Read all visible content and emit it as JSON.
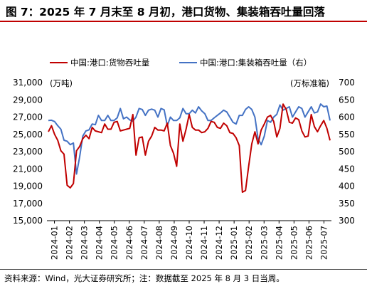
{
  "title": "图 7：2025 年 7 月末至 8 月初，港口货物、集装箱吞吐量回落",
  "source": "资料来源：Wind，光大证券研究所；注：数据截至 2025 年 8 月 3 日当周。",
  "colors": {
    "title_rule": "#c00000",
    "series_left": "#c00000",
    "series_right": "#4472c4"
  },
  "chart_data": {
    "type": "line",
    "left_axis": {
      "unit_label": "(万吨)",
      "ticks": [
        15000,
        17000,
        19000,
        21000,
        23000,
        25000,
        27000,
        29000,
        31000
      ],
      "tick_labels": [
        "15,000",
        "17,000",
        "19,000",
        "21,000",
        "23,000",
        "25,000",
        "27,000",
        "29,000",
        "31,000"
      ],
      "ylim": [
        15000,
        31000
      ]
    },
    "right_axis": {
      "unit_label": "(万标准箱)",
      "ticks": [
        300,
        350,
        400,
        450,
        500,
        550,
        600,
        650,
        700
      ],
      "tick_labels": [
        "300",
        "350",
        "400",
        "450",
        "500",
        "550",
        "600",
        "650",
        "700"
      ],
      "ylim": [
        300,
        700
      ]
    },
    "x_labels": [
      "2024-01",
      "2024-02",
      "2024-03",
      "2024-04",
      "2024-05",
      "2024-06",
      "2024-07",
      "2024-08",
      "2024-09",
      "2024-10",
      "2024-11",
      "2024-12",
      "2025-01",
      "2025-02",
      "2025-03",
      "2025-04",
      "2025-05",
      "2025-06",
      "2025-07"
    ],
    "legend": [
      "中国:港口:货物吞吐量",
      "中国:港口:集装箱吞吐量（右）"
    ],
    "grid": false,
    "series": [
      {
        "name": "中国:港口:货物吞吐量",
        "axis": "left",
        "values": [
          25300,
          26000,
          25000,
          24300,
          23100,
          22700,
          19100,
          18800,
          19300,
          23100,
          23600,
          24500,
          24900,
          24500,
          25800,
          25400,
          25300,
          25200,
          26200,
          25600,
          25600,
          26400,
          26500,
          25400,
          25500,
          25600,
          25700,
          27300,
          22600,
          24600,
          24700,
          22600,
          24200,
          24800,
          25800,
          25500,
          25500,
          25400,
          26300,
          23700,
          22800,
          21300,
          26200,
          24200,
          25600,
          27300,
          25800,
          25500,
          25500,
          25200,
          25300,
          25700,
          26500,
          26400,
          25800,
          25700,
          26300,
          26000,
          25200,
          25100,
          24600,
          23700,
          18300,
          18500,
          21300,
          23900,
          25300,
          23900,
          25500,
          26200,
          27000,
          27200,
          26500,
          24700,
          25700,
          28500,
          27900,
          26400,
          26300,
          26900,
          26700,
          25400,
          24700,
          24800,
          27300,
          25900,
          25300,
          26000,
          26600,
          25700,
          24300
        ]
      },
      {
        "name": "中国:港口:集装箱吞吐量（右）",
        "axis": "right",
        "values": [
          590,
          591,
          587,
          575,
          565,
          533,
          530,
          520,
          525,
          435,
          485,
          545,
          560,
          563,
          580,
          578,
          605,
          590,
          590,
          605,
          590,
          590,
          598,
          625,
          595,
          600,
          592,
          588,
          600,
          625,
          622,
          605,
          620,
          623,
          620,
          600,
          625,
          621,
          575,
          600,
          590,
          590,
          598,
          625,
          610,
          610,
          620,
          612,
          630,
          618,
          610,
          590,
          590,
          598,
          605,
          612,
          620,
          615,
          600,
          585,
          580,
          605,
          605,
          622,
          630,
          622,
          600,
          538,
          520,
          545,
          590,
          585,
          600,
          608,
          635,
          620,
          625,
          630,
          600,
          615,
          630,
          625,
          600,
          615,
          630,
          612,
          615,
          638,
          630,
          632,
          590
        ]
      }
    ]
  }
}
